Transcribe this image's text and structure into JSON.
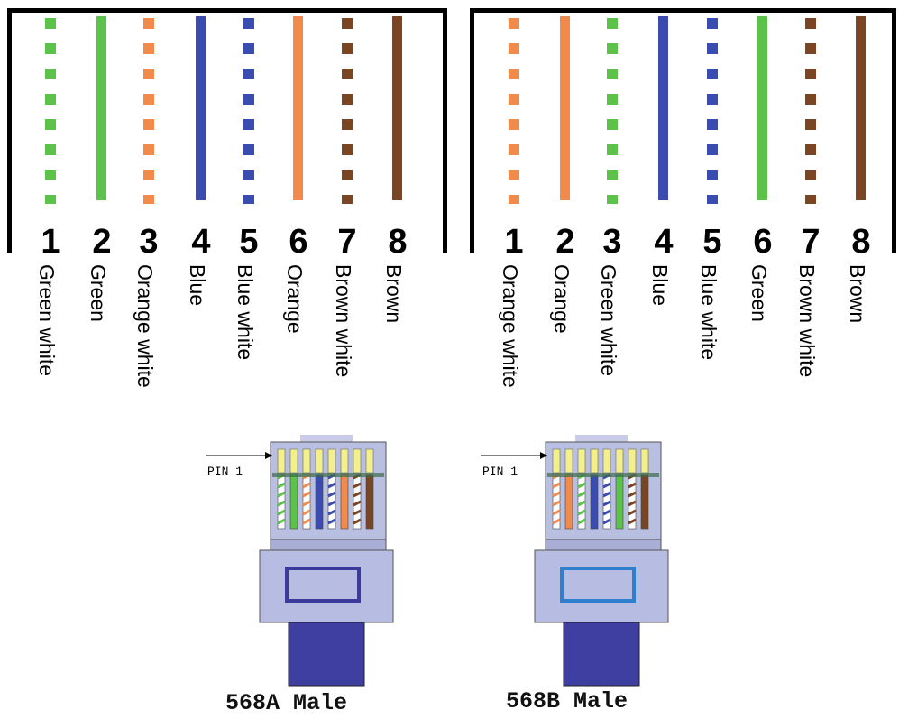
{
  "diagrams": [
    {
      "id": "568a",
      "pins": [
        {
          "number": "1",
          "label": "Green white",
          "color": "#5cc24a",
          "striped": true
        },
        {
          "number": "2",
          "label": "Green",
          "color": "#5cc24a",
          "striped": false
        },
        {
          "number": "3",
          "label": "Orange white",
          "color": "#f28a4b",
          "striped": true
        },
        {
          "number": "4",
          "label": "Blue",
          "color": "#3b4cb0",
          "striped": false
        },
        {
          "number": "5",
          "label": "Blue white",
          "color": "#3b4cb0",
          "striped": true
        },
        {
          "number": "6",
          "label": "Orange",
          "color": "#f28a4b",
          "striped": false
        },
        {
          "number": "7",
          "label": "Brown white",
          "color": "#7a4522",
          "striped": true
        },
        {
          "number": "8",
          "label": "Brown",
          "color": "#7a4522",
          "striped": false
        }
      ],
      "plug_title": "568A Male",
      "pin_label": "PIN 1",
      "latch_color": "#3a3a9a"
    },
    {
      "id": "568b",
      "pins": [
        {
          "number": "1",
          "label": "Orange white",
          "color": "#f28a4b",
          "striped": true
        },
        {
          "number": "2",
          "label": "Orange",
          "color": "#f28a4b",
          "striped": false
        },
        {
          "number": "3",
          "label": "Green white",
          "color": "#5cc24a",
          "striped": true
        },
        {
          "number": "4",
          "label": "Blue",
          "color": "#3b4cb0",
          "striped": false
        },
        {
          "number": "5",
          "label": "Blue white",
          "color": "#3b4cb0",
          "striped": true
        },
        {
          "number": "6",
          "label": "Green",
          "color": "#5cc24a",
          "striped": false
        },
        {
          "number": "7",
          "label": "Brown white",
          "color": "#7a4522",
          "striped": true
        },
        {
          "number": "8",
          "label": "Brown",
          "color": "#7a4522",
          "striped": false
        }
      ],
      "plug_title": "568B Male",
      "pin_label": "PIN 1",
      "latch_color": "#2f7fd0"
    }
  ]
}
